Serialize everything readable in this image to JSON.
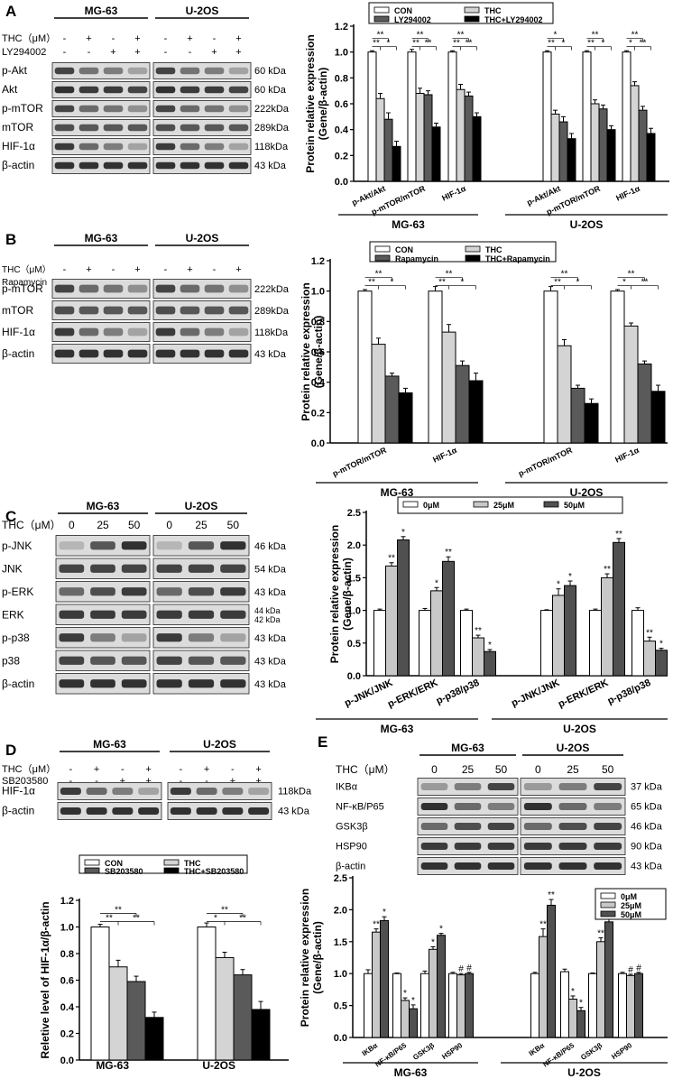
{
  "legend_labels": {
    "CON": "CON",
    "THC": "THC",
    "LY": "LY294002",
    "THC_LY": "THC+LY294002",
    "RAPA": "Rapamycin",
    "THC_RAPA": "THC+Rapamycin",
    "SB": "SB203580",
    "THC_SB": "THC+SB203580",
    "c0": "0μM",
    "c25": "25μM",
    "c50": "50μM"
  },
  "colors": {
    "con": "#ffffff",
    "thc": "#d4d4d4",
    "inhib": "#5a5a5a",
    "combo": "#000000"
  },
  "panels": {
    "A": {
      "letter": "A",
      "blot": {
        "cell_lines": [
          "MG-63",
          "U-2OS"
        ],
        "treat_rows": [
          {
            "label": "THC（μM）",
            "signs": [
              "-",
              "+",
              "-",
              "+"
            ]
          },
          {
            "label": "LY294002",
            "signs": [
              "-",
              "-",
              "+",
              "+"
            ]
          }
        ],
        "rows": [
          {
            "label": "p-Akt",
            "kda": "60 kDa"
          },
          {
            "label": "Akt",
            "kda": "60 kDa"
          },
          {
            "label": "p-mTOR",
            "kda": "222kDa"
          },
          {
            "label": "mTOR",
            "kda": "289kDa"
          },
          {
            "label": "HIF-1α",
            "kda": "118kDa"
          },
          {
            "label": "β-actin",
            "kda": "43 kDa"
          }
        ]
      },
      "chart_data": {
        "type": "bar",
        "ylabel": "Protein relative expression\n(Gene/β-actin)",
        "ylim": [
          0,
          1.2
        ],
        "yticks": [
          "0.0",
          "0.2",
          "0.4",
          "0.6",
          "0.8",
          "1.0",
          "1.2"
        ],
        "legend": [
          "CON",
          "THC",
          "LY294002",
          "THC+LY294002"
        ],
        "categories": [
          "p-Akt/Akt",
          "p-mTOR/mTOR",
          "HIF-1α",
          "p-Akt/Akt",
          "p-mTOR/mTOR",
          "HIF-1α"
        ],
        "group_labels": [
          "MG-63",
          "U-2OS"
        ],
        "series": [
          {
            "name": "CON",
            "values": [
              1.0,
              1.0,
              1.0,
              1.0,
              1.0,
              1.0
            ],
            "errors": [
              0.01,
              0.02,
              0.01,
              0.01,
              0.01,
              0.01
            ]
          },
          {
            "name": "THC",
            "values": [
              0.64,
              0.68,
              0.71,
              0.52,
              0.6,
              0.74
            ],
            "errors": [
              0.04,
              0.04,
              0.04,
              0.03,
              0.03,
              0.03
            ]
          },
          {
            "name": "LY294002",
            "values": [
              0.48,
              0.67,
              0.66,
              0.46,
              0.56,
              0.55
            ],
            "errors": [
              0.05,
              0.03,
              0.03,
              0.04,
              0.03,
              0.03
            ]
          },
          {
            "name": "THC+LY294002",
            "values": [
              0.27,
              0.42,
              0.5,
              0.33,
              0.4,
              0.37
            ],
            "errors": [
              0.04,
              0.03,
              0.03,
              0.04,
              0.03,
              0.04
            ]
          }
        ],
        "significance": [
          "**",
          "**",
          "*",
          "**",
          "**",
          "**",
          "**",
          "**",
          "**",
          "**",
          "*",
          "*",
          "**",
          "**",
          "*",
          "*",
          "**",
          "**"
        ]
      }
    },
    "B": {
      "letter": "B",
      "blot": {
        "cell_lines": [
          "MG-63",
          "U-2OS"
        ],
        "treat_rows": [
          {
            "label": "THC（μM）",
            "signs": [
              "-",
              "+",
              "-",
              "+"
            ]
          },
          {
            "label": "Rapamycin",
            "signs": [
              "-",
              "-",
              "+",
              "+"
            ]
          }
        ],
        "rows": [
          {
            "label": "p-mTOR",
            "kda": "222kDa"
          },
          {
            "label": "mTOR",
            "kda": "289kDa"
          },
          {
            "label": "HIF-1α",
            "kda": "118kDa"
          },
          {
            "label": "β-actin",
            "kda": "43 kDa"
          }
        ]
      },
      "chart_data": {
        "type": "bar",
        "ylabel": "Protein relative expression\n(Gene/β-actin)",
        "ylim": [
          0,
          1.2
        ],
        "yticks": [
          "0.0",
          "0.2",
          "0.4",
          "0.6",
          "0.8",
          "1.0",
          "1.2"
        ],
        "legend": [
          "CON",
          "THC",
          "Rapamycin",
          "THC+Rapamycin"
        ],
        "categories": [
          "p-mTOR/mTOR",
          "HIF-1α",
          "p-mTOR/mTOR",
          "HIF-1α"
        ],
        "group_labels": [
          "MG-63",
          "U-2OS"
        ],
        "series": [
          {
            "name": "CON",
            "values": [
              1.0,
              1.0,
              1.0,
              1.0
            ],
            "errors": [
              0.01,
              0.03,
              0.03,
              0.01
            ]
          },
          {
            "name": "THC",
            "values": [
              0.65,
              0.73,
              0.64,
              0.77
            ],
            "errors": [
              0.04,
              0.05,
              0.04,
              0.02
            ]
          },
          {
            "name": "Rapamycin",
            "values": [
              0.44,
              0.51,
              0.36,
              0.52
            ],
            "errors": [
              0.02,
              0.03,
              0.02,
              0.02
            ]
          },
          {
            "name": "THC+Rapamycin",
            "values": [
              0.33,
              0.41,
              0.26,
              0.34
            ],
            "errors": [
              0.03,
              0.05,
              0.03,
              0.04
            ]
          }
        ],
        "significance": [
          "**",
          "**",
          "*",
          "**",
          "**",
          "*",
          "**",
          "**",
          "*",
          "*",
          "**",
          "**"
        ]
      }
    },
    "C": {
      "letter": "C",
      "blot": {
        "cell_lines": [
          "MG-63",
          "U-2OS"
        ],
        "treat_label": "THC（μM）",
        "doses": [
          "0",
          "25",
          "50",
          "0",
          "25",
          "50"
        ],
        "rows": [
          {
            "label": "p-JNK",
            "kda": "46 kDa"
          },
          {
            "label": "JNK",
            "kda": "54 kDa"
          },
          {
            "label": "p-ERK",
            "kda": "43 kDa"
          },
          {
            "label": "ERK",
            "kda": "44 kDa",
            "kda2": "42 kDa"
          },
          {
            "label": "p-p38",
            "kda": "43 kDa"
          },
          {
            "label": "p38",
            "kda": "43 kDa"
          },
          {
            "label": "β-actin",
            "kda": "43 kDa"
          }
        ]
      },
      "chart_data": {
        "type": "bar",
        "ylabel": "Protein relative expression\n(Gene/β-actin)",
        "ylim": [
          0,
          2.5
        ],
        "yticks": [
          "0.0",
          "0.5",
          "1.0",
          "1.5",
          "2.0",
          "2.5"
        ],
        "legend": [
          "0μM",
          "25μM",
          "50μM"
        ],
        "categories": [
          "p-JNK/JNK",
          "p-ERK/ERK",
          "p-p38/p38",
          "p-JNK/JNK",
          "p-ERK/ERK",
          "p-p38/p38"
        ],
        "group_labels": [
          "MG-63",
          "U-2OS"
        ],
        "series": [
          {
            "name": "0μM",
            "values": [
              1.0,
              1.0,
              1.0,
              1.0,
              1.0,
              1.0
            ],
            "errors": [
              0.02,
              0.03,
              0.02,
              0.01,
              0.02,
              0.04
            ]
          },
          {
            "name": "25μM",
            "values": [
              1.68,
              1.3,
              0.58,
              1.23,
              1.5,
              0.53
            ],
            "errors": [
              0.05,
              0.05,
              0.04,
              0.1,
              0.06,
              0.06
            ]
          },
          {
            "name": "50μM",
            "values": [
              2.08,
              1.75,
              0.37,
              1.38,
              2.04,
              0.39
            ],
            "errors": [
              0.05,
              0.07,
              0.03,
              0.07,
              0.06,
              0.03
            ]
          }
        ],
        "significance": [
          "**",
          "*",
          "*",
          "**",
          "**",
          "*",
          "*",
          "*",
          "**",
          "**",
          "**",
          "*"
        ]
      }
    },
    "D": {
      "letter": "D",
      "blot": {
        "cell_lines": [
          "MG-63",
          "U-2OS"
        ],
        "treat_rows": [
          {
            "label": "THC（μM）",
            "signs": [
              "-",
              "+",
              "-",
              "+"
            ]
          },
          {
            "label": "SB203580",
            "signs": [
              "-",
              "-",
              "+",
              "+"
            ]
          }
        ],
        "rows": [
          {
            "label": "HIF-1α",
            "kda": "118kDa"
          },
          {
            "label": "β-actin",
            "kda": "43 kDa"
          }
        ]
      },
      "chart_data": {
        "type": "bar",
        "ylabel": "Reletive level of HIF-1α/β-actin",
        "ylim": [
          0,
          1.2
        ],
        "yticks": [
          "0.0",
          "0.2",
          "0.4",
          "0.6",
          "0.8",
          "1.0",
          "1.2"
        ],
        "legend": [
          "CON",
          "THC",
          "SB203580",
          "THC+SB203580"
        ],
        "categories": [
          "MG-63",
          "U-2OS"
        ],
        "series": [
          {
            "name": "CON",
            "values": [
              1.0,
              1.0
            ],
            "errors": [
              0.02,
              0.03
            ]
          },
          {
            "name": "THC",
            "values": [
              0.7,
              0.77
            ],
            "errors": [
              0.05,
              0.04
            ]
          },
          {
            "name": "SB203580",
            "values": [
              0.59,
              0.64
            ],
            "errors": [
              0.04,
              0.04
            ]
          },
          {
            "name": "THC+SB203580",
            "values": [
              0.32,
              0.38
            ],
            "errors": [
              0.04,
              0.06
            ]
          }
        ],
        "significance": [
          "**",
          "**",
          "**",
          "*",
          "**",
          "**"
        ]
      }
    },
    "E": {
      "letter": "E",
      "blot": {
        "cell_lines": [
          "MG-63",
          "U-2OS"
        ],
        "treat_label": "THC（μM）",
        "doses": [
          "0",
          "25",
          "50",
          "0",
          "25",
          "50"
        ],
        "rows": [
          {
            "label": "IKBα",
            "kda": "37 kDa"
          },
          {
            "label": "NF-κB/P65",
            "kda": "65 kDa"
          },
          {
            "label": "GSK3β",
            "kda": "46 kDa"
          },
          {
            "label": "HSP90",
            "kda": "90 kDa"
          },
          {
            "label": "β-actin",
            "kda": "43 kDa"
          }
        ]
      },
      "chart_data": {
        "type": "bar",
        "ylabel": "Protein relative expression\n(Gene/β-actin)",
        "ylim": [
          0,
          2.5
        ],
        "yticks": [
          "0.0",
          "0.5",
          "1.0",
          "1.5",
          "2.0",
          "2.5"
        ],
        "legend": [
          "0μM",
          "25μM",
          "50μM"
        ],
        "categories": [
          "IKBα",
          "NF-κB/P65",
          "GSK3β",
          "HSP90",
          "IKBα",
          "NF-κB/P65",
          "GSK3β",
          "HSP90"
        ],
        "group_labels": [
          "MG-63",
          "U-2OS"
        ],
        "series": [
          {
            "name": "0μM",
            "values": [
              1.0,
              1.0,
              1.0,
              1.0,
              1.0,
              1.03,
              1.0,
              1.0
            ],
            "errors": [
              0.06,
              0.01,
              0.04,
              0.02,
              0.02,
              0.04,
              0.01,
              0.02
            ]
          },
          {
            "name": "25μM",
            "values": [
              1.65,
              0.58,
              1.38,
              0.98,
              1.58,
              0.6,
              1.5,
              0.97
            ],
            "errors": [
              0.05,
              0.04,
              0.04,
              0.02,
              0.12,
              0.05,
              0.06,
              0.02
            ]
          },
          {
            "name": "50μM",
            "values": [
              1.83,
              0.45,
              1.6,
              1.0,
              2.07,
              0.42,
              1.81,
              1.0
            ],
            "errors": [
              0.06,
              0.06,
              0.03,
              0.02,
              0.09,
              0.05,
              0.06,
              0.02
            ]
          }
        ],
        "significance": [
          "**",
          "*",
          "*",
          "*",
          "*",
          "*",
          "#",
          "#",
          "**",
          "**",
          "*",
          "*",
          "**",
          "*",
          "#",
          "#"
        ]
      }
    }
  }
}
